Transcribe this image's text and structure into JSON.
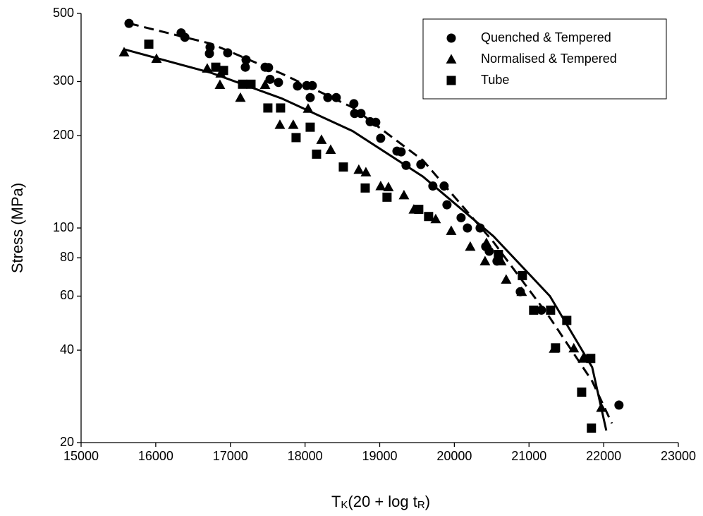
{
  "chart_data": {
    "type": "scatter",
    "xlabel_parts": [
      "T",
      "K",
      "(20 + log t",
      "R",
      ")"
    ],
    "ylabel": "Stress (MPa)",
    "xlim": [
      15000,
      23000
    ],
    "xticks": [
      15000,
      16000,
      17000,
      18000,
      19000,
      20000,
      21000,
      22000,
      23000
    ],
    "ylim": [
      20,
      500
    ],
    "yticks": [
      20,
      40,
      60,
      80,
      100,
      200,
      300,
      500
    ],
    "ylog": true,
    "legend": "upper right",
    "series": [
      {
        "name": "Quenched & Tempered",
        "marker": "circle",
        "color": "#000000",
        "x": [
          15642,
          16340,
          16390,
          16728,
          16719,
          16964,
          17210,
          17200,
          17465,
          17511,
          17531,
          17644,
          17899,
          18022,
          18097,
          18069,
          18305,
          18418,
          18654,
          18664,
          18749,
          18872,
          18947,
          19013,
          19231,
          19287,
          19353,
          19551,
          19712,
          19863,
          19901,
          20090,
          20175,
          20345,
          20420,
          20467,
          20571,
          20883,
          21166,
          22205
        ],
        "values": [
          464,
          432,
          418,
          388,
          370,
          372,
          353,
          334,
          334,
          333,
          305,
          298,
          290,
          291,
          291,
          266,
          266,
          266,
          254,
          236,
          236,
          222,
          221,
          196,
          178,
          177,
          160,
          161,
          137,
          137,
          119,
          108,
          100,
          100,
          87,
          84,
          78,
          62,
          54,
          26.5
        ]
      },
      {
        "name": "Normalised & Tempered",
        "marker": "triangle",
        "color": "#000000",
        "x": [
          15576,
          16010,
          16690,
          16870,
          16860,
          17134,
          17465,
          17663,
          17842,
          18041,
          18220,
          18343,
          18720,
          18815,
          19013,
          19117,
          19325,
          19457,
          19750,
          19958,
          20213,
          20430,
          20411,
          20628,
          20694,
          20902,
          21336,
          21600,
          21723,
          21969
        ],
        "values": [
          374,
          356,
          331,
          319,
          293,
          266,
          293,
          217,
          217,
          245,
          194,
          180,
          155,
          152,
          137,
          136,
          128,
          115,
          107,
          98,
          87,
          89.5,
          78,
          78,
          68,
          62,
          40.5,
          40.6,
          37.6,
          26
        ]
      },
      {
        "name": "Tube",
        "marker": "square",
        "color": "#000000",
        "x": [
          15907,
          16804,
          16908,
          17163,
          17276,
          17502,
          17672,
          18069,
          17880,
          18154,
          18513,
          18806,
          19098,
          19523,
          19655,
          20590,
          20911,
          21062,
          21289,
          21506,
          21355,
          21705,
          21827,
          21836
        ],
        "values": [
          397,
          334,
          326,
          294,
          294,
          246,
          246,
          213,
          197,
          174,
          158,
          135,
          126,
          115,
          109,
          82,
          70,
          54,
          54,
          50,
          40.7,
          29.2,
          37.6,
          22.3
        ]
      }
    ],
    "curves": [
      {
        "style": "dashed",
        "color": "#000000",
        "x": [
          15642,
          16747,
          17691,
          18636,
          19580,
          20524,
          21280,
          21846,
          22110
        ],
        "values": [
          464,
          398,
          318,
          247,
          166,
          90,
          51,
          31.7,
          23.1
        ]
      },
      {
        "style": "solid",
        "color": "#000000",
        "x": [
          15576,
          16747,
          17691,
          18636,
          19580,
          20524,
          21280,
          21846,
          22035
        ],
        "values": [
          382,
          320,
          264,
          207,
          147,
          94,
          60,
          35.2,
          21.9
        ]
      }
    ]
  }
}
